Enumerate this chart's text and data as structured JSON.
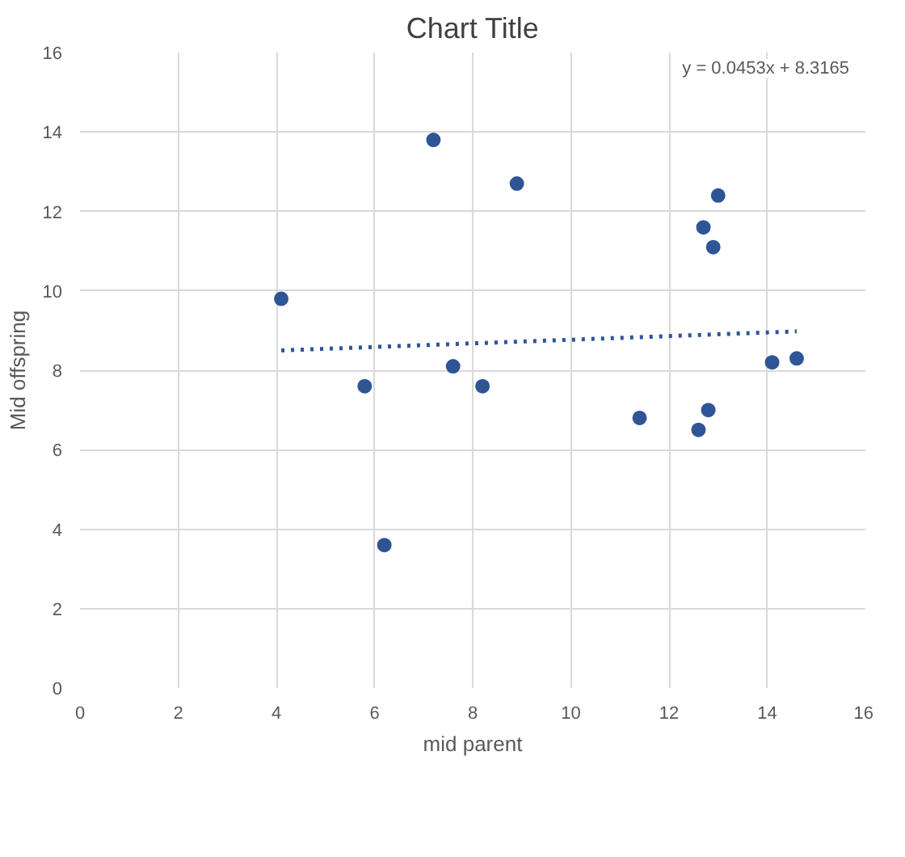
{
  "chart_data": {
    "type": "scatter",
    "title": "Chart Title",
    "xlabel": "mid parent",
    "ylabel": "Mid offspring",
    "annotations": [
      "y = 0.0453x + 8.3165"
    ],
    "xlim": [
      0,
      16
    ],
    "ylim": [
      0,
      16
    ],
    "xticks": [
      0,
      2,
      4,
      6,
      8,
      10,
      12,
      14,
      16
    ],
    "yticks": [
      0,
      2,
      4,
      6,
      8,
      10,
      12,
      14,
      16
    ],
    "grid": true,
    "series": [
      {
        "marker": "circle",
        "color": "#2f5597",
        "x": [
          4.1,
          5.8,
          6.2,
          7.2,
          7.6,
          8.2,
          8.9,
          11.4,
          12.6,
          12.7,
          12.8,
          12.9,
          13.0,
          14.1,
          14.6
        ],
        "values": [
          9.8,
          7.6,
          3.6,
          13.8,
          8.1,
          7.6,
          12.7,
          6.8,
          6.5,
          11.6,
          7.0,
          11.1,
          12.4,
          8.2,
          8.3
        ]
      },
      {
        "type": "line",
        "marker": "none",
        "color": "#2f5597",
        "line_style": "dotted",
        "x": [
          4.1,
          14.6
        ],
        "values": [
          8.5,
          8.98
        ]
      }
    ]
  }
}
